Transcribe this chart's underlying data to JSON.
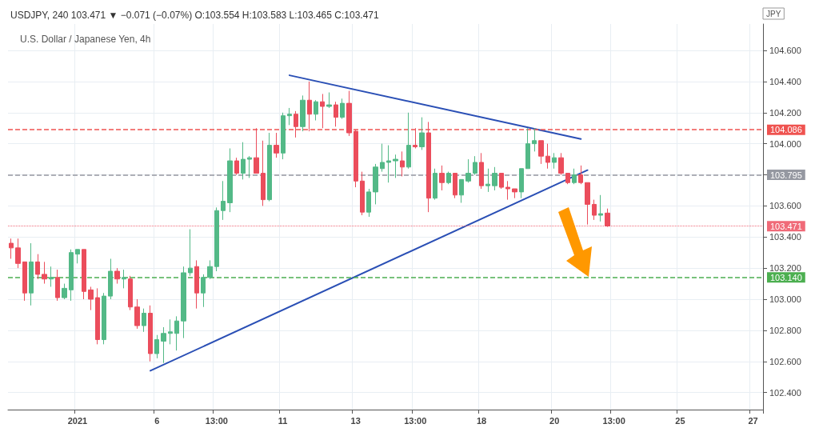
{
  "chart_data": {
    "type": "candlestick",
    "title": "USDJPY, 240 103.471 ▼ −0.071 (−0.07%) O:103.554 H:103.583 L:103.465 C:103.471",
    "subtitle": "U.S. Dollar / Japanese Yen, 4h",
    "ylabel": "JPY",
    "categories": [
      null,
      null,
      null,
      null,
      null,
      null,
      null,
      null,
      null,
      null,
      "2021",
      null,
      null,
      null,
      null,
      null,
      null,
      null,
      null,
      null,
      null,
      null,
      "6",
      null,
      null,
      null,
      null,
      null,
      null,
      null,
      null,
      "13:00",
      null,
      null,
      null,
      null,
      null,
      null,
      null,
      null,
      null,
      "11",
      null,
      null,
      null,
      null,
      null,
      null,
      null,
      null,
      null,
      null,
      "13",
      null,
      null,
      null,
      null,
      null,
      null,
      null,
      null,
      "13:00",
      null,
      null,
      null,
      null,
      null,
      null,
      null,
      null,
      null,
      "18",
      null,
      null,
      null,
      null,
      null,
      null,
      null,
      null,
      null,
      null,
      "20",
      null,
      null,
      null,
      null,
      null,
      null,
      null,
      null,
      "13:00",
      null,
      null,
      null,
      null,
      null,
      null,
      null,
      null,
      null,
      "25",
      null,
      null,
      null,
      null,
      null,
      null,
      null,
      null,
      null,
      null,
      "27",
      null
    ],
    "ohlc": [
      [
        103.36,
        103.39,
        103.26,
        103.33
      ],
      [
        103.33,
        103.39,
        103.2,
        103.23
      ],
      [
        103.24,
        103.24,
        102.99,
        103.04
      ],
      [
        103.04,
        103.36,
        102.96,
        103.24
      ],
      [
        103.24,
        103.29,
        103.13,
        103.16
      ],
      [
        103.16,
        103.24,
        103.1,
        103.13
      ],
      [
        103.13,
        103.21,
        103.08,
        103.14
      ],
      [
        103.14,
        103.19,
        102.99,
        103.01
      ],
      [
        103.01,
        103.1,
        103.0,
        103.07
      ],
      [
        103.06,
        103.32,
        102.99,
        103.3
      ],
      [
        103.29,
        103.32,
        103.23,
        103.32
      ],
      [
        103.32,
        103.32,
        103.0,
        103.05
      ],
      [
        103.06,
        103.08,
        102.93,
        103.0
      ],
      [
        103.01,
        103.07,
        102.71,
        102.74
      ],
      [
        102.74,
        103.04,
        102.71,
        103.02
      ],
      [
        103.02,
        103.26,
        103.0,
        103.18
      ],
      [
        103.18,
        103.2,
        103.1,
        103.13
      ],
      [
        103.13,
        103.19,
        103.07,
        103.14
      ],
      [
        103.13,
        103.15,
        102.93,
        102.95
      ],
      [
        102.95,
        103.0,
        102.81,
        102.83
      ],
      [
        102.83,
        102.94,
        102.79,
        102.91
      ],
      [
        102.91,
        102.96,
        102.6,
        102.65
      ],
      [
        102.65,
        102.77,
        102.62,
        102.74
      ],
      [
        102.73,
        102.82,
        102.59,
        102.78
      ],
      [
        102.78,
        102.87,
        102.71,
        102.79
      ],
      [
        102.78,
        102.89,
        102.67,
        102.86
      ],
      [
        102.86,
        103.21,
        102.75,
        103.17
      ],
      [
        103.17,
        103.45,
        103.15,
        103.2
      ],
      [
        103.21,
        103.25,
        102.94,
        103.04
      ],
      [
        103.04,
        103.16,
        102.95,
        103.14
      ],
      [
        103.14,
        103.25,
        103.13,
        103.21
      ],
      [
        103.21,
        103.59,
        103.18,
        103.57
      ],
      [
        103.57,
        103.76,
        103.51,
        103.63
      ],
      [
        103.62,
        103.97,
        103.56,
        103.89
      ],
      [
        103.89,
        103.91,
        103.8,
        103.81
      ],
      [
        103.81,
        104.01,
        103.77,
        103.9
      ],
      [
        103.9,
        103.92,
        103.78,
        103.91
      ],
      [
        103.91,
        104.1,
        103.81,
        103.81
      ],
      [
        103.81,
        104.02,
        103.6,
        103.64
      ],
      [
        103.64,
        104.07,
        103.63,
        103.99
      ],
      [
        103.99,
        104.07,
        103.91,
        103.94
      ],
      [
        103.94,
        104.2,
        103.9,
        104.18
      ],
      [
        104.18,
        104.23,
        104.12,
        104.19
      ],
      [
        104.19,
        104.21,
        104.04,
        104.11
      ],
      [
        104.11,
        104.31,
        104.08,
        104.28
      ],
      [
        104.28,
        104.4,
        104.08,
        104.19
      ],
      [
        104.19,
        104.28,
        104.15,
        104.27
      ],
      [
        104.27,
        104.32,
        104.1,
        104.24
      ],
      [
        104.24,
        104.33,
        104.23,
        104.25
      ],
      [
        104.25,
        104.27,
        104.11,
        104.17
      ],
      [
        104.17,
        104.29,
        104.16,
        104.26
      ],
      [
        104.26,
        104.34,
        104.05,
        104.07
      ],
      [
        104.08,
        104.09,
        103.72,
        103.76
      ],
      [
        103.76,
        103.82,
        103.54,
        103.56
      ],
      [
        103.56,
        103.71,
        103.53,
        103.69
      ],
      [
        103.69,
        103.87,
        103.61,
        103.85
      ],
      [
        103.84,
        104.0,
        103.82,
        103.88
      ],
      [
        103.88,
        103.99,
        103.75,
        103.89
      ],
      [
        103.89,
        103.93,
        103.78,
        103.9
      ],
      [
        103.89,
        103.95,
        103.79,
        103.85
      ],
      [
        103.85,
        104.2,
        103.84,
        103.99
      ],
      [
        103.99,
        104.1,
        103.97,
        103.98
      ],
      [
        103.98,
        104.17,
        103.96,
        104.07
      ],
      [
        104.07,
        104.14,
        103.56,
        103.65
      ],
      [
        103.65,
        103.84,
        103.64,
        103.81
      ],
      [
        103.81,
        103.86,
        103.7,
        103.75
      ],
      [
        103.75,
        103.82,
        103.74,
        103.81
      ],
      [
        103.81,
        103.81,
        103.65,
        103.67
      ],
      [
        103.67,
        103.77,
        103.62,
        103.77
      ],
      [
        103.76,
        103.9,
        103.75,
        103.81
      ],
      [
        103.81,
        103.92,
        103.8,
        103.88
      ],
      [
        103.88,
        103.94,
        103.71,
        103.73
      ],
      [
        103.73,
        103.84,
        103.69,
        103.74
      ],
      [
        103.73,
        103.85,
        103.7,
        103.81
      ],
      [
        103.81,
        103.81,
        103.71,
        103.72
      ],
      [
        103.72,
        103.76,
        103.64,
        103.71
      ],
      [
        103.71,
        103.71,
        103.65,
        103.69
      ],
      [
        103.69,
        103.84,
        103.65,
        103.84
      ],
      [
        103.84,
        104.1,
        103.84,
        104.0
      ],
      [
        104.0,
        104.1,
        103.95,
        104.02
      ],
      [
        104.02,
        104.02,
        103.87,
        103.92
      ],
      [
        103.92,
        104.0,
        103.84,
        103.88
      ],
      [
        103.88,
        103.94,
        103.84,
        103.91
      ],
      [
        103.91,
        103.94,
        103.8,
        103.81
      ],
      [
        103.81,
        103.81,
        103.74,
        103.75
      ],
      [
        103.75,
        103.84,
        103.74,
        103.8
      ],
      [
        103.8,
        103.86,
        103.74,
        103.75
      ],
      [
        103.75,
        103.75,
        103.48,
        103.61
      ],
      [
        103.61,
        103.64,
        103.51,
        103.54
      ],
      [
        103.54,
        103.67,
        103.5,
        103.55
      ],
      [
        103.554,
        103.583,
        103.465,
        103.471
      ],
      null,
      null,
      null,
      null,
      null,
      null,
      null,
      null,
      null,
      null,
      null,
      null,
      null,
      null,
      null,
      null,
      null,
      null,
      null,
      null,
      null,
      null,
      null
    ],
    "colors": [
      "#eb4d5c",
      "#eb4d5c",
      "#eb4d5c",
      "#53b987",
      "#eb4d5c",
      "#eb4d5c",
      "#53b987",
      "#eb4d5c",
      "#53b987",
      "#53b987",
      "#53b987",
      "#eb4d5c",
      "#eb4d5c",
      "#eb4d5c",
      "#53b987",
      "#53b987",
      "#eb4d5c",
      "#53b987",
      "#eb4d5c",
      "#eb4d5c",
      "#53b987",
      "#eb4d5c",
      "#53b987",
      "#53b987",
      "#53b987",
      "#53b987",
      "#53b987",
      "#53b987",
      "#eb4d5c",
      "#53b987",
      "#53b987",
      "#53b987",
      "#53b987",
      "#53b987",
      "#eb4d5c",
      "#53b987",
      "#53b987",
      "#eb4d5c",
      "#eb4d5c",
      "#53b987",
      "#eb4d5c",
      "#53b987",
      "#53b987",
      "#eb4d5c",
      "#53b987",
      "#eb4d5c",
      "#53b987",
      "#eb4d5c",
      "#53b987",
      "#eb4d5c",
      "#53b987",
      "#eb4d5c",
      "#eb4d5c",
      "#eb4d5c",
      "#53b987",
      "#53b987",
      "#53b987",
      "#53b987",
      "#53b987",
      "#eb4d5c",
      "#53b987",
      "#eb4d5c",
      "#53b987",
      "#eb4d5c",
      "#53b987",
      "#eb4d5c",
      "#53b987",
      "#eb4d5c",
      "#53b987",
      "#53b987",
      "#53b987",
      "#eb4d5c",
      "#53b987",
      "#53b987",
      "#eb4d5c",
      "#eb4d5c",
      "#eb4d5c",
      "#53b987",
      "#53b987",
      "#53b987",
      "#eb4d5c",
      "#eb4d5c",
      "#53b987",
      "#eb4d5c",
      "#eb4d5c",
      "#53b987",
      "#eb4d5c",
      "#eb4d5c",
      "#eb4d5c",
      "#53b987",
      "#eb4d5c",
      null,
      null,
      null,
      null,
      null,
      null,
      null,
      null,
      null,
      null,
      null,
      null,
      null,
      null,
      null,
      null,
      null,
      null,
      null,
      null,
      null,
      null,
      null
    ],
    "series": [
      {
        "type": "line",
        "color": "#2a4fb5",
        "values": [
          null,
          null,
          null,
          null,
          null,
          null,
          null,
          null,
          null,
          null,
          null,
          null,
          null,
          null,
          null,
          null,
          null,
          null,
          null,
          null,
          null,
          null,
          null,
          null,
          null,
          null,
          null,
          null,
          null,
          null,
          null,
          null,
          null,
          null,
          null,
          null,
          null,
          null,
          null,
          null,
          null,
          null,
          104.44,
          null,
          null,
          null,
          null,
          null,
          null,
          null,
          null,
          null,
          null,
          null,
          null,
          null,
          null,
          null,
          null,
          null,
          null,
          null,
          null,
          null,
          null,
          null,
          null,
          null,
          null,
          null,
          null,
          null,
          null,
          null,
          null,
          null,
          null,
          null,
          null,
          null,
          null,
          null,
          null,
          null,
          null,
          null,
          104.03,
          null,
          null,
          null,
          null,
          null,
          null,
          null,
          null,
          null,
          null,
          null,
          null,
          null,
          null,
          null,
          null,
          null,
          null,
          null,
          null,
          null,
          null,
          null,
          null,
          null,
          null,
          null
        ]
      },
      {
        "type": "line",
        "color": "#2a4fb5",
        "values": [
          null,
          null,
          null,
          null,
          null,
          null,
          null,
          null,
          null,
          null,
          null,
          null,
          null,
          null,
          null,
          null,
          null,
          null,
          null,
          null,
          null,
          102.54,
          null,
          null,
          null,
          null,
          null,
          null,
          null,
          null,
          null,
          null,
          null,
          null,
          null,
          null,
          null,
          null,
          null,
          null,
          null,
          null,
          null,
          null,
          null,
          null,
          null,
          null,
          null,
          null,
          null,
          null,
          null,
          null,
          null,
          null,
          null,
          null,
          null,
          null,
          null,
          null,
          null,
          null,
          null,
          null,
          null,
          null,
          null,
          null,
          null,
          null,
          null,
          null,
          null,
          null,
          null,
          null,
          null,
          null,
          null,
          null,
          null,
          null,
          null,
          null,
          null,
          103.83,
          null,
          null,
          null,
          null,
          null,
          null,
          null,
          null,
          null,
          null,
          null,
          null,
          null,
          null,
          null,
          null,
          null,
          null,
          null,
          null,
          null,
          null,
          null,
          null,
          null,
          null
        ]
      }
    ],
    "ylim": [
      102.29,
      104.77
    ],
    "yticks": [
      {
        "value": 102.4,
        "label": "102.400"
      },
      {
        "value": 102.6,
        "label": "102.600"
      },
      {
        "value": 102.8,
        "label": "102.800"
      },
      {
        "value": 103.0,
        "label": "103.000"
      },
      {
        "value": 103.2,
        "label": "103.200"
      },
      {
        "value": 103.4,
        "label": "103.400"
      },
      {
        "value": 103.6,
        "label": "103.600"
      },
      {
        "value": 103.8,
        "label": null
      },
      {
        "value": 104.0,
        "label": "104.000"
      },
      {
        "value": 104.2,
        "label": "104.200"
      },
      {
        "value": 104.4,
        "label": "104.400"
      },
      {
        "value": 104.6,
        "label": "104.600"
      }
    ],
    "ref_lines": [
      {
        "axis": "y",
        "value": 104.086,
        "label": "104.086",
        "color": "#ef5350",
        "line_style": "dashed"
      },
      {
        "axis": "y",
        "value": 103.795,
        "label": "103.795",
        "color": "#9598a1",
        "line_style": "dashed"
      },
      {
        "axis": "y",
        "value": 103.471,
        "label": "103.471",
        "color": "#f06a78",
        "line_style": "dotted"
      },
      {
        "axis": "y",
        "value": 103.14,
        "label": "103.140",
        "color": "#4caf50",
        "line_style": "dashed"
      }
    ],
    "grid": true
  }
}
